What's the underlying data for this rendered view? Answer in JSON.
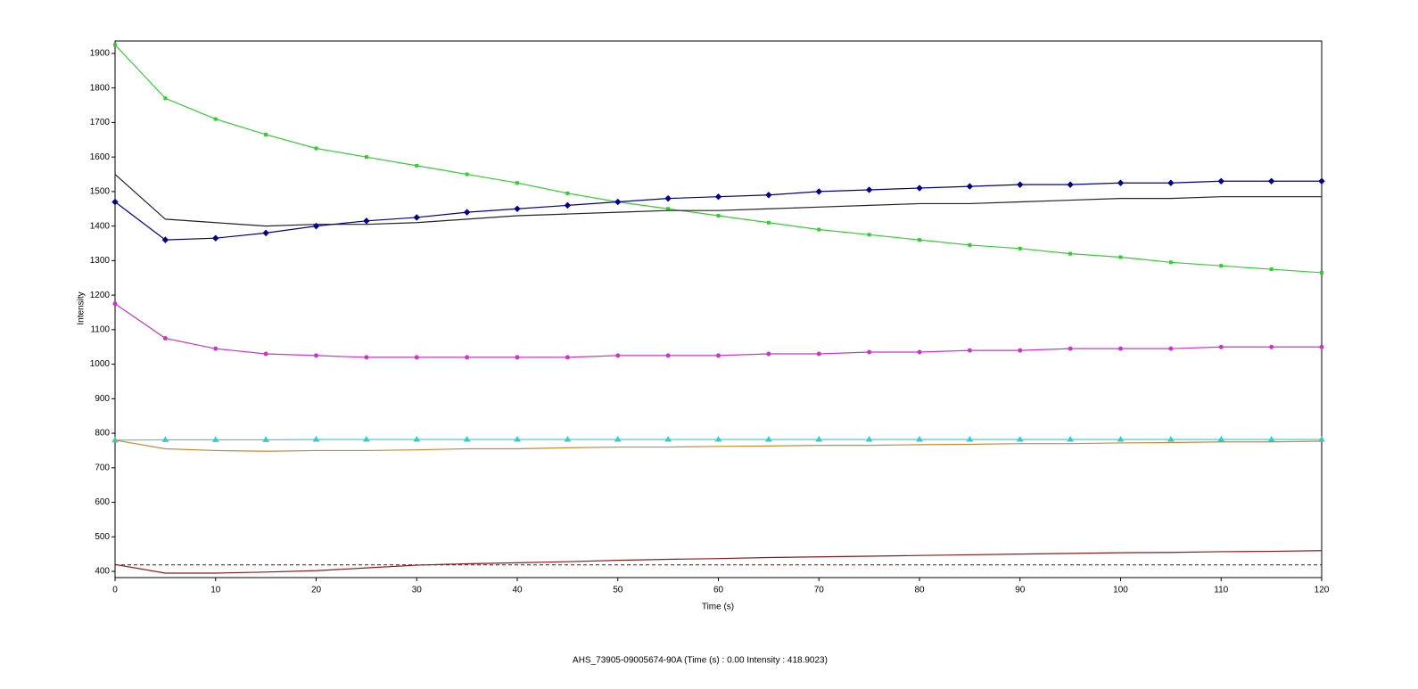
{
  "chart_data": {
    "type": "line",
    "x_label": "Time (s)",
    "y_label": "Intensity",
    "status_text": "AHS_73905-09005674-90A (Time (s) : 0.00  Intensity : 418.9023)",
    "cursor_line": 418.9023,
    "cursor_color": "#8b0000",
    "xlim": [
      0,
      120
    ],
    "xticks": [
      0,
      10,
      20,
      30,
      40,
      50,
      60,
      70,
      80,
      90,
      100,
      110,
      120
    ],
    "ylim": [
      382,
      1936
    ],
    "yticks": [
      400,
      500,
      600,
      700,
      800,
      900,
      1000,
      1100,
      1200,
      1300,
      1400,
      1500,
      1600,
      1700,
      1800,
      1900
    ],
    "x": [
      0,
      5,
      10,
      15,
      20,
      25,
      30,
      35,
      40,
      45,
      50,
      55,
      60,
      65,
      70,
      75,
      80,
      85,
      90,
      95,
      100,
      105,
      110,
      115,
      120
    ],
    "series": [
      {
        "color": "#33cc33",
        "marker": "square",
        "values": [
          1925,
          1770,
          1710,
          1665,
          1625,
          1600,
          1575,
          1550,
          1525,
          1495,
          1470,
          1450,
          1430,
          1410,
          1390,
          1375,
          1360,
          1345,
          1335,
          1320,
          1310,
          1295,
          1285,
          1275,
          1265
        ]
      },
      {
        "color": "#222222",
        "marker": "none",
        "values": [
          1550,
          1420,
          1410,
          1400,
          1405,
          1405,
          1410,
          1420,
          1430,
          1435,
          1440,
          1445,
          1445,
          1450,
          1455,
          1460,
          1465,
          1465,
          1470,
          1475,
          1480,
          1480,
          1485,
          1485,
          1485
        ]
      },
      {
        "color": "#00008b",
        "marker": "diamond",
        "values": [
          1470,
          1360,
          1365,
          1380,
          1400,
          1415,
          1425,
          1440,
          1450,
          1460,
          1470,
          1480,
          1485,
          1490,
          1500,
          1505,
          1510,
          1515,
          1520,
          1520,
          1525,
          1525,
          1530,
          1530,
          1530
        ]
      },
      {
        "color": "#cc33cc",
        "marker": "circle",
        "values": [
          1175,
          1075,
          1045,
          1030,
          1025,
          1020,
          1020,
          1020,
          1020,
          1020,
          1025,
          1025,
          1025,
          1030,
          1030,
          1035,
          1035,
          1040,
          1040,
          1045,
          1045,
          1045,
          1050,
          1050,
          1050
        ]
      },
      {
        "color": "#33cccc",
        "marker": "triangle",
        "values": [
          780,
          781,
          781,
          781,
          782,
          782,
          782,
          782,
          782,
          782,
          782,
          782,
          782,
          782,
          782,
          782,
          782,
          782,
          782,
          782,
          782,
          782,
          782,
          782,
          782
        ]
      },
      {
        "color": "#cc8833",
        "marker": "none",
        "values": [
          780,
          755,
          750,
          748,
          750,
          750,
          752,
          755,
          755,
          758,
          760,
          760,
          762,
          763,
          765,
          765,
          767,
          768,
          770,
          770,
          772,
          773,
          775,
          775,
          777
        ]
      },
      {
        "color": "#8b1a1a",
        "marker": "none",
        "values": [
          420,
          395,
          395,
          398,
          402,
          410,
          418,
          422,
          425,
          428,
          432,
          435,
          437,
          440,
          442,
          444,
          446,
          448,
          450,
          452,
          454,
          455,
          457,
          458,
          460
        ]
      }
    ]
  }
}
